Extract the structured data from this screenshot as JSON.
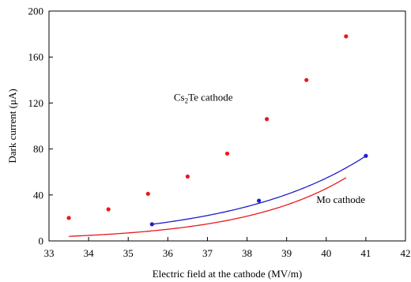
{
  "chart_data": {
    "type": "scatter",
    "xlabel": "Electric field at the cathode (MV/m)",
    "ylabel_prefix": "Dark current (",
    "ylabel_unit_greek": "μ",
    "ylabel_suffix": "A)",
    "xlim": [
      33,
      42
    ],
    "ylim": [
      0,
      200
    ],
    "xticks": [
      "33",
      "34",
      "35",
      "36",
      "37",
      "38",
      "39",
      "40",
      "41",
      "42"
    ],
    "yticks": [
      "0",
      "40",
      "80",
      "120",
      "160",
      "200"
    ],
    "grid": false,
    "series": [
      {
        "color": "#e8191f",
        "points": [
          {
            "x": 33.5,
            "y": 20
          },
          {
            "x": 34.5,
            "y": 27.5
          },
          {
            "x": 35.5,
            "y": 41
          },
          {
            "x": 36.5,
            "y": 56
          },
          {
            "x": 37.5,
            "y": 76
          },
          {
            "x": 38.5,
            "y": 106
          },
          {
            "x": 39.5,
            "y": 140
          },
          {
            "x": 40.5,
            "y": 178
          }
        ],
        "fit": {
          "a": 3.97,
          "b": 0.3756,
          "x0": 33.5,
          "x_range": [
            33.5,
            40.5
          ]
        }
      },
      {
        "color": "#1f1fc8",
        "points": [
          {
            "x": 35.6,
            "y": 14.5
          },
          {
            "x": 38.3,
            "y": 35
          },
          {
            "x": 41.0,
            "y": 74
          }
        ],
        "fit": {
          "a": 14.5,
          "b": 0.3016,
          "x0": 35.6,
          "x_range": [
            35.6,
            41.0
          ]
        }
      }
    ],
    "annotations": [
      {
        "text_main": "Cs",
        "text_sub": "2",
        "text_rest": "Te cathode",
        "x": 36.15,
        "y": 122
      },
      {
        "text_main": "Mo cathode",
        "x": 39.75,
        "y": 33
      }
    ]
  }
}
